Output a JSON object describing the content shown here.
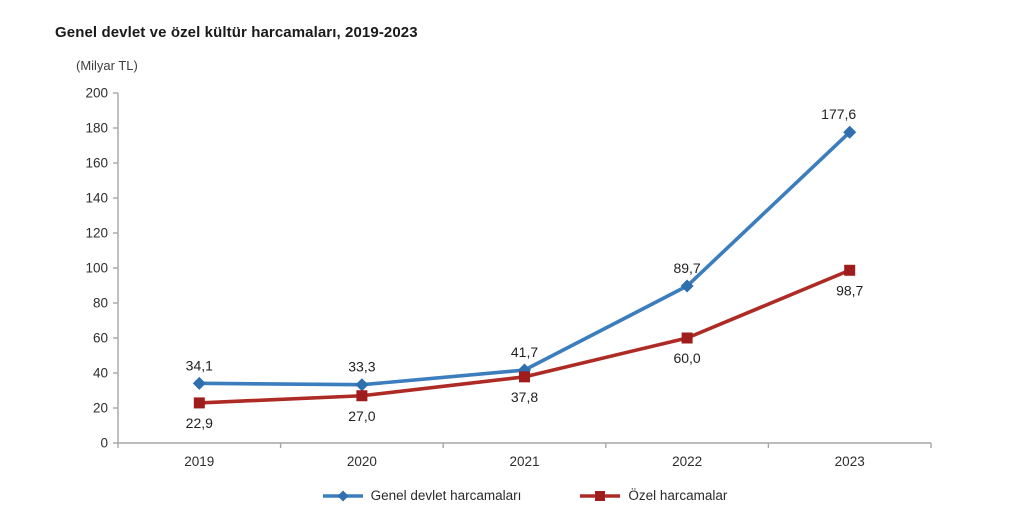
{
  "title": "Genel devlet ve özel kültür harcamaları, 2019-2023",
  "unit_label": "(Milyar TL)",
  "chart_data": {
    "type": "line",
    "categories": [
      "2019",
      "2020",
      "2021",
      "2022",
      "2023"
    ],
    "series": [
      {
        "name": "Genel devlet harcamaları",
        "values": [
          34.1,
          33.3,
          41.7,
          89.7,
          177.6
        ],
        "labels": [
          "34,1",
          "33,3",
          "41,7",
          "89,7",
          "177,6"
        ],
        "line_color": "#3b7dbd",
        "marker_color": "#2f6fae",
        "marker": "diamond",
        "label_position": "above"
      },
      {
        "name": "Özel harcamalar",
        "values": [
          22.9,
          27.0,
          37.8,
          60.0,
          98.7
        ],
        "labels": [
          "22,9",
          "27,0",
          "37,8",
          "60,0",
          "98,7"
        ],
        "line_color": "#ae2b25",
        "marker_color": "#9e1c1c",
        "marker": "square",
        "label_position": "below"
      }
    ],
    "ylim": [
      0,
      200
    ],
    "yticks": [
      "0",
      "20",
      "40",
      "60",
      "80",
      "100",
      "120",
      "140",
      "160",
      "180",
      "200"
    ],
    "ytick_step": 20,
    "grid": false,
    "legend_position": "bottom",
    "axis_color": "#a6a6a6",
    "tick_text_color": "#2e2e2e",
    "data_label_color": "#1f1f1f"
  }
}
